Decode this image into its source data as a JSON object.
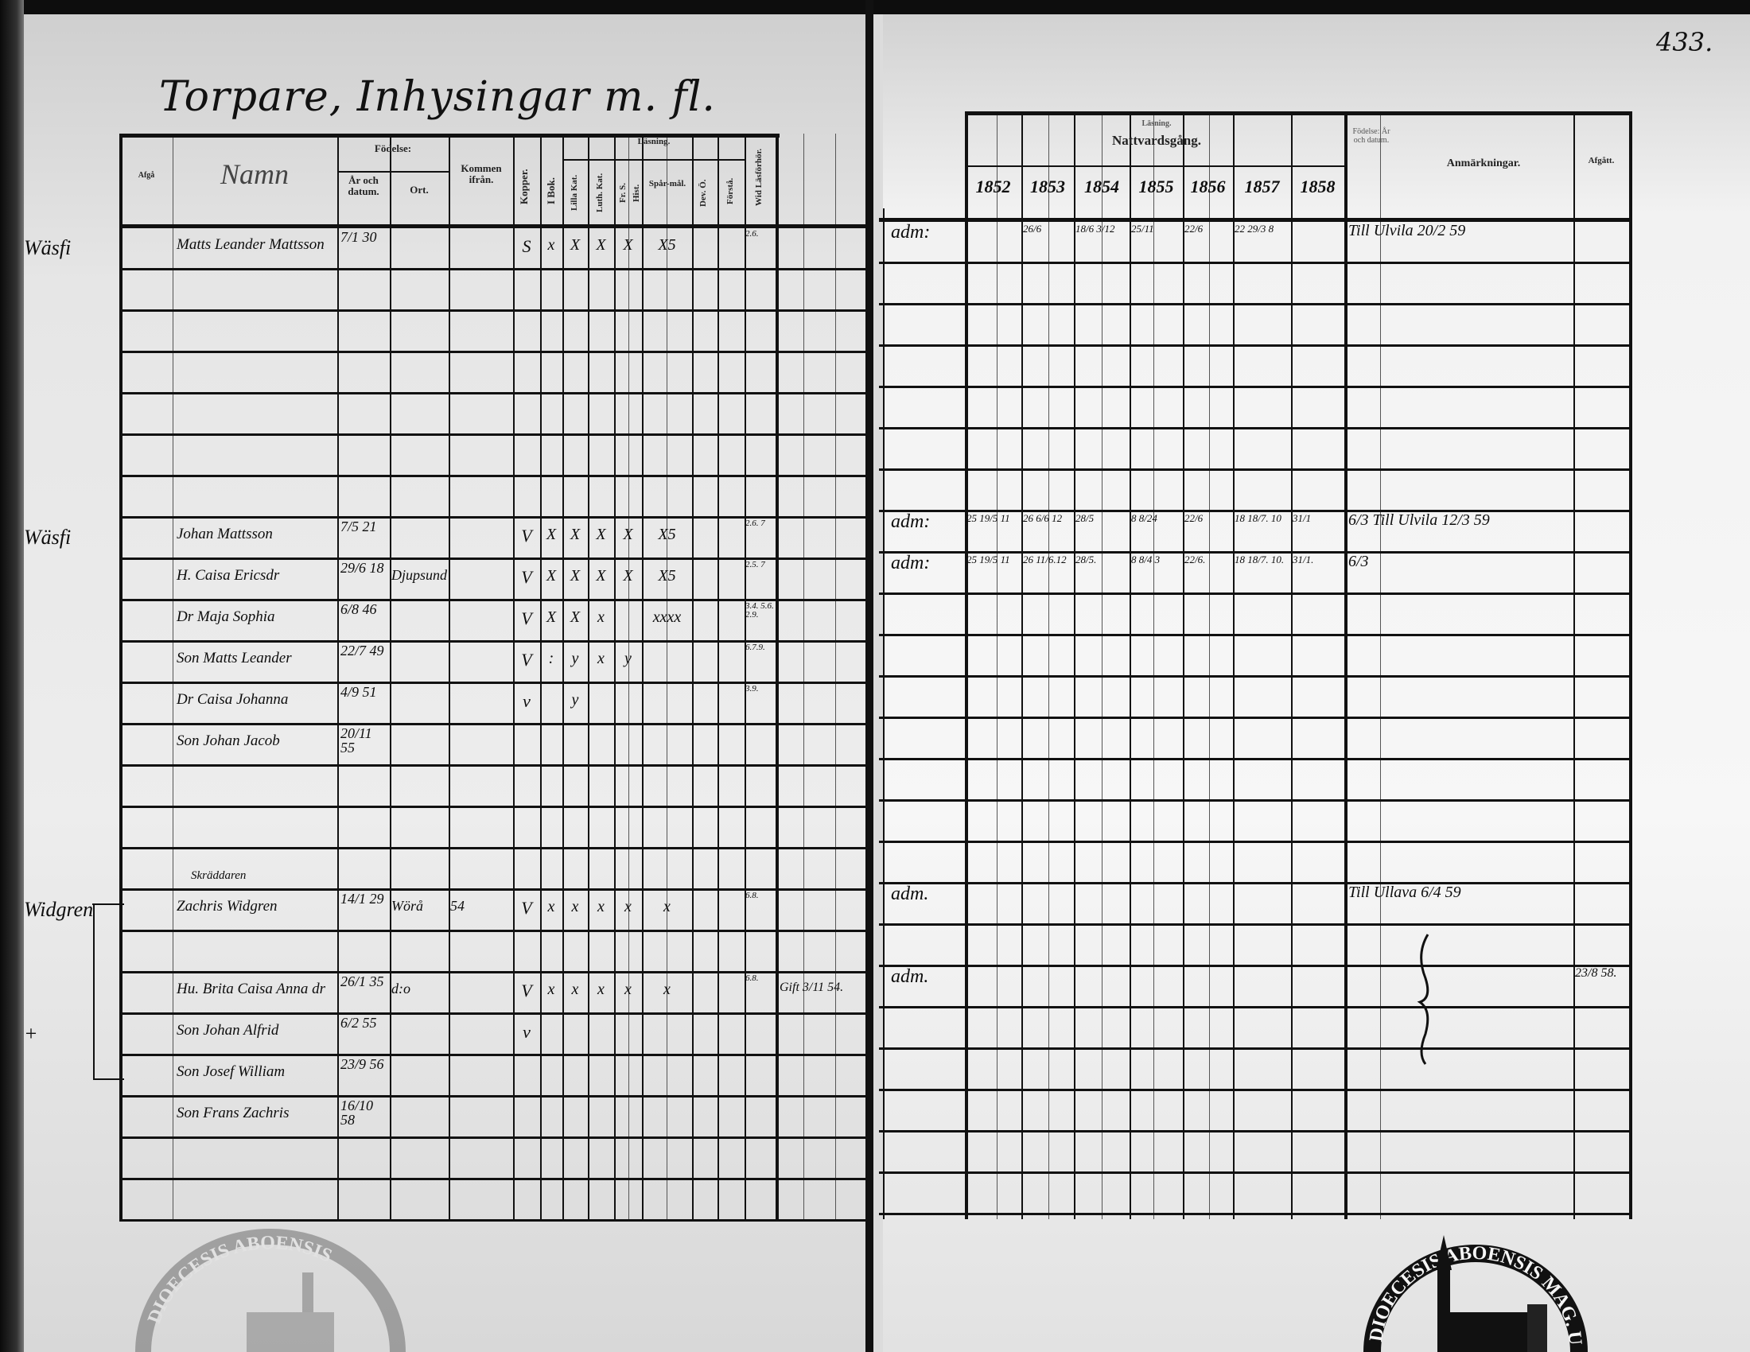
{
  "page": {
    "title": "Torpare, Inhysingar m. fl.",
    "page_number": "433."
  },
  "left_header": {
    "col_afga": "Afgå",
    "col_name": "Namn",
    "birth_group": "Födelse:",
    "birth_date": "År och datum.",
    "birth_place": "Ort.",
    "came_from": "Kommen ifrån.",
    "kopper": "Kopper.",
    "i_bok": "I Bok.",
    "reading_group": "Läsning.",
    "lilla_kat": "Lilla Kat.",
    "luth_kat": "Luth. Kat.",
    "fr_s": "Fr. S.",
    "hist": "Hist.",
    "spar": "Spår-mål.",
    "dev": "Dev. Ö.",
    "forsta": "Förstå.",
    "wid": "Wid Läsförhör."
  },
  "right_header": {
    "reading": "Läsning.",
    "communion": "Nattvardsgång.",
    "years": [
      "1852",
      "1853",
      "1854",
      "1855",
      "1856",
      "1857",
      "1858"
    ],
    "birth": "Födelse: År och datum.",
    "remarks": "Anmärkningar.",
    "departed": "Afgått."
  },
  "persons": [
    {
      "row": 0,
      "margin": "Wäsfi",
      "name": "Matts Leander Mattsson",
      "birth": "7/1 30",
      "kopper": "S",
      "i_bok": "x",
      "lilla": "X",
      "luth": "X",
      "fr": "X",
      "spar": "X5",
      "wid": "2.6.",
      "adm": "adm:",
      "years": [
        "",
        "26/6",
        "18/6 3/12",
        "25/11",
        "22/6",
        "22 29/3 8",
        ""
      ],
      "remark": "Till Ulvila 20/2 59"
    },
    {
      "row": 7,
      "margin": "Wäsfi",
      "name": "Johan Mattsson",
      "birth": "7/5 21",
      "kopper": "V",
      "i_bok": "X",
      "lilla": "X",
      "luth": "X",
      "fr": "X",
      "spar": "X5",
      "wid": "2.6. 7",
      "adm": "adm:",
      "years": [
        "25 19/5 11",
        "26 6/6 12",
        "28/5",
        "8 8/24",
        "22/6",
        "18 18/7. 10",
        "31/1"
      ],
      "remark": "6/3 Till Ulvila 12/3 59"
    },
    {
      "row": 8,
      "name": "H. Caisa Ericsdr",
      "birth": "29/6 18",
      "ort": "Djupsund",
      "kopper": "V",
      "i_bok": "X",
      "lilla": "X",
      "luth": "X",
      "fr": "X",
      "spar": "X5",
      "wid": "2.5. 7",
      "adm": "adm:",
      "years": [
        "25 19/5 11",
        "26 11/6.12",
        "28/5.",
        "8 8/4 3",
        "22/6.",
        "18 18/7. 10.",
        "31/1."
      ],
      "remark": "6/3"
    },
    {
      "row": 9,
      "name": "Dr Maja Sophia",
      "birth": "6/8 46",
      "kopper": "V",
      "i_bok": "X",
      "lilla": "X",
      "luth": "x",
      "spar": "xxxx",
      "wid": "3.4. 5.6. 2.9."
    },
    {
      "row": 10,
      "name": "Son Matts Leander",
      "birth": "22/7 49",
      "kopper": "V",
      "i_bok": ":",
      "lilla": "y",
      "luth": "x",
      "fr": "y",
      "wid": "6.7.9."
    },
    {
      "row": 11,
      "name": "Dr Caisa Johanna",
      "birth": "4/9 51",
      "kopper": "v",
      "lilla": "y",
      "wid": "3.9."
    },
    {
      "row": 12,
      "name": "Son Johan Jacob",
      "birth": "20/11 55"
    },
    {
      "row": 16,
      "margin": "Widgren",
      "occupation": "Skräddaren",
      "name": "Zachris Widgren",
      "birth": "14/1 29",
      "ort": "Wörå",
      "came": "54",
      "kopper": "V",
      "i_bok": "x",
      "lilla": "x",
      "luth": "x",
      "fr": "x",
      "spar": "x",
      "wid": "6.8.",
      "adm": "adm.",
      "remark": "Till Ullava 6/4 59"
    },
    {
      "row": 18,
      "name": "Hu. Brita Caisa Anna dr",
      "birth": "26/1 35",
      "ort": "d:o",
      "kopper": "V",
      "i_bok": "x",
      "lilla": "x",
      "luth": "x",
      "fr": "x",
      "spar": "x",
      "wid": "6.8.",
      "extra": "Gift 3/11 54.",
      "adm": "adm.",
      "departed": "23/8 58."
    },
    {
      "row": 19,
      "margin": "+",
      "name": "Son Johan Alfrid",
      "birth": "6/2 55",
      "kopper": "v"
    },
    {
      "row": 20,
      "name": "Son Josef William",
      "birth": "23/9 56"
    },
    {
      "row": 21,
      "name": "Son Frans Zachris",
      "birth": "16/10 58"
    }
  ],
  "stamps": {
    "right": "DIOECESIS ABOENSIS MAG. UNI.",
    "left": "DIOECESIS ABOENSIS"
  },
  "colors": {
    "ink": "#0d0d0d",
    "paper": "#f2f2f2",
    "edge": "#0a0a0a"
  }
}
